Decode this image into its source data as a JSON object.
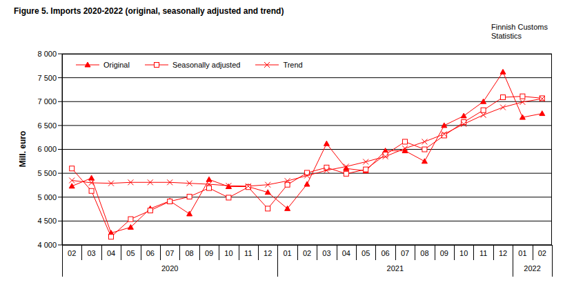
{
  "chart_data": {
    "type": "line",
    "title": "Figure  5. Imports 2020-2022 (original, seasonally adjusted and trend)",
    "source": "Finnish Customs Statistics",
    "y_label": "Mill. euro",
    "categories": [
      "02",
      "03",
      "04",
      "05",
      "06",
      "07",
      "08",
      "09",
      "10",
      "11",
      "12",
      "01",
      "02",
      "03",
      "04",
      "05",
      "06",
      "07",
      "08",
      "09",
      "10",
      "11",
      "12",
      "01",
      "02"
    ],
    "year_groups": [
      {
        "label": "2020",
        "count": 11
      },
      {
        "label": "2021",
        "count": 12
      },
      {
        "label": "2022",
        "count": 2
      }
    ],
    "series": [
      {
        "name": "Original",
        "color": "#ff0000",
        "marker": "triangle",
        "values": [
          5230,
          5400,
          4250,
          4370,
          4760,
          4920,
          4650,
          5370,
          5220,
          5220,
          5100,
          4760,
          5270,
          6120,
          5600,
          5550,
          5970,
          5970,
          5750,
          6500,
          6700,
          7000,
          7620,
          6670,
          6750
        ]
      },
      {
        "name": "Seasonally adjusted",
        "color": "#ff0000",
        "marker": "square",
        "values": [
          5600,
          5130,
          4170,
          4540,
          4720,
          4910,
          5010,
          5190,
          4990,
          5210,
          4760,
          5260,
          5510,
          5620,
          5490,
          5580,
          5890,
          6160,
          6000,
          6290,
          6570,
          6820,
          7090,
          7110,
          7070
        ]
      },
      {
        "name": "Trend",
        "color": "#ff0000",
        "marker": "x",
        "values": [
          5350,
          5300,
          5290,
          5310,
          5310,
          5310,
          5290,
          5270,
          5240,
          5230,
          5260,
          5340,
          5450,
          5560,
          5640,
          5740,
          5850,
          6020,
          6160,
          6320,
          6530,
          6720,
          6880,
          6990,
          7060
        ]
      }
    ],
    "ylim": [
      4000,
      8000
    ],
    "yticks": [
      {
        "value": 4000,
        "label": "4 000"
      },
      {
        "value": 4500,
        "label": "4 500"
      },
      {
        "value": 5000,
        "label": "5 000"
      },
      {
        "value": 5500,
        "label": "5 500"
      },
      {
        "value": 6000,
        "label": "6 000"
      },
      {
        "value": 6500,
        "label": "6 500"
      },
      {
        "value": 7000,
        "label": "7 000"
      },
      {
        "value": 7500,
        "label": "7 500"
      },
      {
        "value": 8000,
        "label": "8 000"
      }
    ],
    "grid": true,
    "legend": "top-left"
  }
}
